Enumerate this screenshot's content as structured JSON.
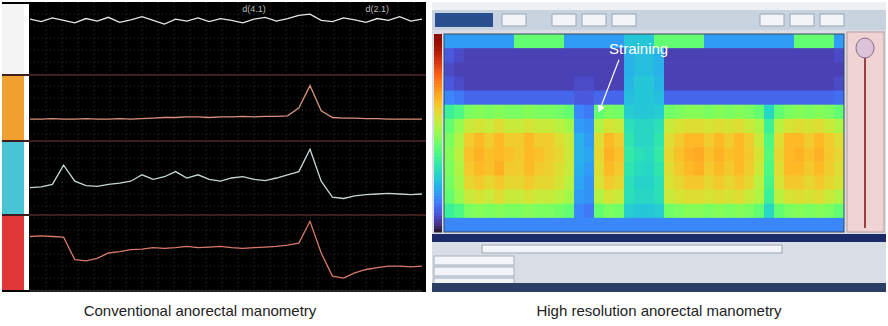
{
  "chart_data": [
    {
      "type": "line",
      "title": "Conventional anorectal manometry",
      "tick_labels": false,
      "xlim": [
        0,
        35
      ],
      "ylim": [
        0,
        100
      ],
      "x": [
        0,
        1,
        2,
        3,
        4,
        5,
        6,
        7,
        8,
        9,
        10,
        11,
        12,
        13,
        14,
        15,
        16,
        17,
        18,
        19,
        20,
        21,
        22,
        23,
        24,
        25,
        26,
        27,
        28,
        29,
        30,
        31,
        32,
        33,
        34,
        35
      ],
      "annotations": [
        {
          "x": 20,
          "text": "d(4.1)"
        },
        {
          "x": 31,
          "text": "d(2.1)"
        }
      ],
      "series": [
        {
          "color": "#e6e6e6",
          "values": [
            82,
            78,
            84,
            80,
            76,
            83,
            79,
            85,
            77,
            81,
            86,
            80,
            74,
            82,
            79,
            84,
            78,
            83,
            80,
            76,
            82,
            85,
            79,
            83,
            88,
            90,
            80,
            78,
            84,
            81,
            77,
            83,
            80,
            86,
            79,
            82
          ]
        },
        {
          "color": "#d9917a",
          "values": [
            30,
            30,
            31,
            30,
            30,
            31,
            30,
            30,
            31,
            30,
            31,
            32,
            33,
            33,
            34,
            34,
            33,
            34,
            34,
            35,
            34,
            35,
            35,
            36,
            50,
            90,
            45,
            33,
            32,
            32,
            31,
            31,
            30,
            30,
            30,
            30
          ]
        },
        {
          "color": "#c4d6d6",
          "values": [
            35,
            36,
            40,
            70,
            45,
            38,
            37,
            40,
            42,
            45,
            55,
            48,
            52,
            60,
            50,
            55,
            48,
            45,
            50,
            52,
            48,
            46,
            50,
            55,
            60,
            95,
            45,
            20,
            18,
            22,
            24,
            25,
            26,
            25,
            24,
            25
          ]
        },
        {
          "color": "#d87868",
          "values": [
            75,
            76,
            75,
            74,
            40,
            38,
            42,
            50,
            52,
            55,
            56,
            58,
            57,
            58,
            60,
            58,
            59,
            60,
            58,
            57,
            58,
            59,
            60,
            62,
            65,
            98,
            50,
            15,
            12,
            20,
            25,
            28,
            30,
            30,
            29,
            30
          ]
        }
      ]
    },
    {
      "type": "heatmap",
      "title": "High resolution anorectal manometry",
      "tick_labels": false,
      "color_range": [
        0,
        150
      ],
      "annotations": [
        {
          "x": 15,
          "y": 5,
          "text": "Straining"
        }
      ],
      "cells": [
        [
          30,
          30,
          30,
          30,
          30,
          30,
          30,
          65,
          65,
          65,
          65,
          65,
          30,
          30,
          30,
          30,
          30,
          30,
          40,
          40,
          40,
          65,
          65,
          65,
          65,
          65,
          30,
          30,
          30,
          30,
          30,
          30,
          30,
          30,
          30,
          65,
          65,
          65,
          65,
          30
        ],
        [
          15,
          12,
          10,
          10,
          10,
          10,
          10,
          10,
          10,
          10,
          10,
          10,
          10,
          10,
          10,
          10,
          10,
          10,
          35,
          38,
          38,
          35,
          10,
          10,
          10,
          10,
          10,
          10,
          10,
          10,
          10,
          10,
          10,
          10,
          10,
          10,
          10,
          10,
          10,
          12
        ],
        [
          12,
          10,
          10,
          10,
          10,
          10,
          10,
          10,
          10,
          10,
          10,
          10,
          10,
          10,
          10,
          10,
          10,
          10,
          35,
          38,
          38,
          35,
          10,
          10,
          10,
          10,
          10,
          10,
          10,
          10,
          10,
          10,
          10,
          10,
          10,
          10,
          10,
          10,
          10,
          10
        ],
        [
          15,
          12,
          10,
          10,
          10,
          10,
          10,
          10,
          10,
          10,
          10,
          10,
          10,
          12,
          12,
          10,
          10,
          10,
          36,
          40,
          40,
          36,
          10,
          10,
          10,
          10,
          10,
          10,
          10,
          10,
          10,
          10,
          10,
          10,
          10,
          10,
          10,
          10,
          10,
          12
        ],
        [
          25,
          22,
          18,
          18,
          18,
          18,
          18,
          18,
          18,
          18,
          18,
          18,
          18,
          15,
          15,
          18,
          18,
          18,
          38,
          40,
          40,
          38,
          18,
          18,
          18,
          18,
          18,
          18,
          18,
          18,
          18,
          18,
          18,
          18,
          18,
          18,
          18,
          18,
          18,
          20
        ],
        [
          55,
          60,
          70,
          72,
          70,
          72,
          70,
          70,
          72,
          70,
          70,
          68,
          65,
          25,
          22,
          65,
          70,
          68,
          42,
          40,
          40,
          42,
          68,
          70,
          72,
          72,
          70,
          72,
          70,
          72,
          70,
          65,
          45,
          65,
          70,
          72,
          70,
          72,
          70,
          65
        ],
        [
          65,
          75,
          85,
          88,
          85,
          90,
          85,
          85,
          88,
          85,
          85,
          82,
          78,
          30,
          28,
          80,
          88,
          85,
          48,
          45,
          45,
          48,
          85,
          88,
          90,
          90,
          88,
          90,
          88,
          90,
          85,
          80,
          55,
          82,
          88,
          90,
          88,
          90,
          85,
          80
        ],
        [
          70,
          80,
          95,
          100,
          95,
          100,
          95,
          95,
          100,
          95,
          95,
          90,
          85,
          35,
          30,
          90,
          100,
          95,
          50,
          45,
          45,
          50,
          90,
          95,
          100,
          100,
          95,
          100,
          95,
          100,
          95,
          85,
          60,
          90,
          100,
          100,
          95,
          100,
          95,
          90
        ],
        [
          72,
          82,
          98,
          102,
          98,
          100,
          98,
          96,
          100,
          98,
          95,
          92,
          86,
          35,
          32,
          92,
          102,
          98,
          52,
          48,
          46,
          52,
          92,
          98,
          102,
          104,
          98,
          102,
          98,
          100,
          96,
          88,
          62,
          92,
          100,
          102,
          98,
          102,
          96,
          92
        ],
        [
          70,
          80,
          96,
          100,
          98,
          102,
          96,
          95,
          100,
          96,
          94,
          90,
          85,
          34,
          30,
          90,
          100,
          96,
          50,
          46,
          45,
          50,
          90,
          96,
          100,
          102,
          96,
          100,
          96,
          100,
          95,
          86,
          60,
          90,
          100,
          100,
          96,
          100,
          95,
          90
        ],
        [
          68,
          78,
          92,
          96,
          92,
          96,
          92,
          92,
          96,
          92,
          92,
          88,
          82,
          32,
          28,
          88,
          96,
          92,
          48,
          44,
          44,
          48,
          88,
          92,
          96,
          96,
          92,
          96,
          92,
          96,
          92,
          82,
          58,
          88,
          96,
          96,
          92,
          96,
          92,
          88
        ],
        [
          65,
          75,
          85,
          88,
          85,
          90,
          85,
          85,
          88,
          85,
          85,
          82,
          78,
          30,
          28,
          80,
          88,
          85,
          48,
          45,
          45,
          48,
          85,
          88,
          90,
          90,
          88,
          90,
          88,
          90,
          85,
          80,
          55,
          82,
          88,
          90,
          88,
          90,
          85,
          80
        ],
        [
          55,
          60,
          70,
          72,
          70,
          72,
          70,
          70,
          72,
          70,
          70,
          68,
          65,
          25,
          22,
          65,
          70,
          68,
          42,
          40,
          40,
          42,
          68,
          70,
          72,
          72,
          70,
          72,
          70,
          72,
          70,
          65,
          45,
          65,
          70,
          72,
          70,
          72,
          70,
          65
        ],
        [
          25,
          25,
          25,
          25,
          25,
          25,
          25,
          25,
          25,
          25,
          25,
          25,
          25,
          25,
          25,
          25,
          25,
          25,
          25,
          25,
          25,
          25,
          25,
          25,
          25,
          25,
          25,
          25,
          25,
          25,
          25,
          25,
          25,
          25,
          25,
          25,
          25,
          25,
          25,
          25
        ]
      ]
    }
  ]
}
